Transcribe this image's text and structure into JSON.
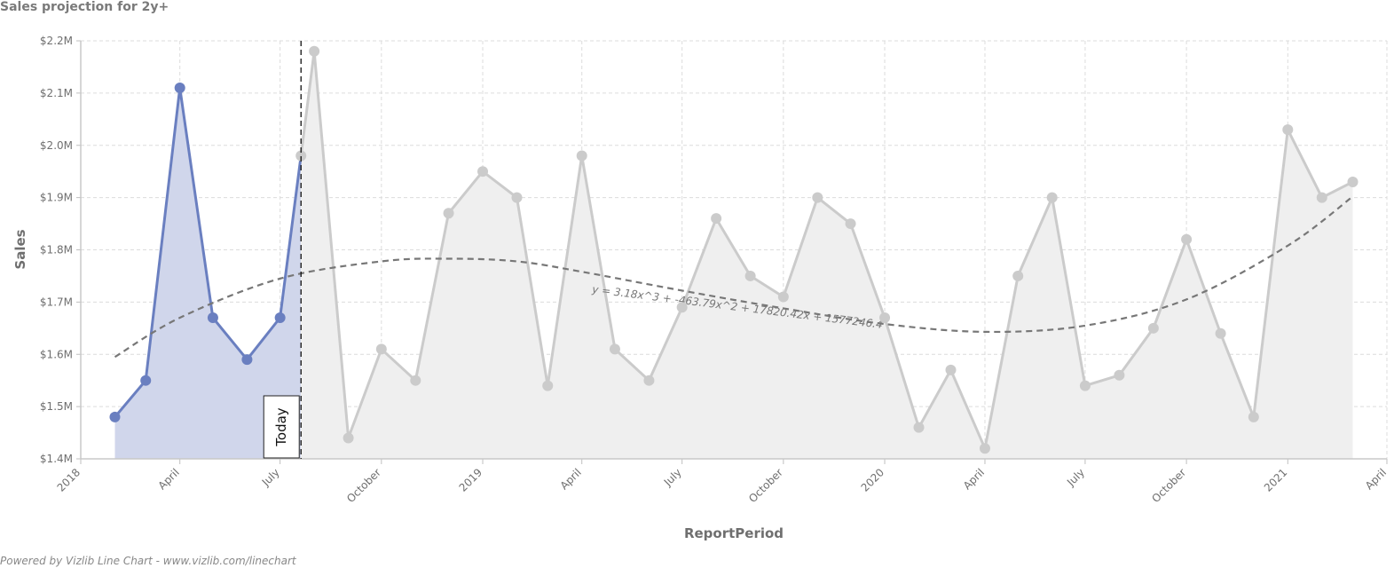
{
  "title": "Sales projection for 2y+",
  "footer": "Powered by Vizlib Line Chart - www.vizlib.com/linechart",
  "chart_data": {
    "type": "line",
    "xlabel": "ReportPeriod",
    "ylabel": "Sales",
    "ylim": [
      1400000,
      2200000
    ],
    "xlim": [
      "2018-01-01",
      "2021-04-01"
    ],
    "y_ticks": [
      {
        "value": 1400000,
        "label": "$1.4M"
      },
      {
        "value": 1500000,
        "label": "$1.5M"
      },
      {
        "value": 1600000,
        "label": "$1.6M"
      },
      {
        "value": 1700000,
        "label": "$1.7M"
      },
      {
        "value": 1800000,
        "label": "$1.8M"
      },
      {
        "value": 1900000,
        "label": "$1.9M"
      },
      {
        "value": 2000000,
        "label": "$2.0M"
      },
      {
        "value": 2100000,
        "label": "$2.1M"
      },
      {
        "value": 2200000,
        "label": "$2.2M"
      }
    ],
    "x_ticks": [
      {
        "date": "2018-01-01",
        "label": "2018"
      },
      {
        "date": "2018-04-01",
        "label": "April"
      },
      {
        "date": "2018-07-01",
        "label": "July"
      },
      {
        "date": "2018-10-01",
        "label": "October"
      },
      {
        "date": "2019-01-01",
        "label": "2019"
      },
      {
        "date": "2019-04-01",
        "label": "April"
      },
      {
        "date": "2019-07-01",
        "label": "July"
      },
      {
        "date": "2019-10-01",
        "label": "October"
      },
      {
        "date": "2020-01-01",
        "label": "2020"
      },
      {
        "date": "2020-04-01",
        "label": "April"
      },
      {
        "date": "2020-07-01",
        "label": "July"
      },
      {
        "date": "2020-10-01",
        "label": "October"
      },
      {
        "date": "2021-01-01",
        "label": "2021"
      },
      {
        "date": "2021-04-01",
        "label": "April"
      }
    ],
    "series": [
      {
        "color": "#6a7fc0",
        "fill": "#d0d6eb",
        "points": [
          {
            "date": "2018-02-01",
            "value": 1480000
          },
          {
            "date": "2018-03-01",
            "value": 1550000
          },
          {
            "date": "2018-04-01",
            "value": 2110000
          },
          {
            "date": "2018-05-01",
            "value": 1670000
          },
          {
            "date": "2018-06-01",
            "value": 1590000
          },
          {
            "date": "2018-07-01",
            "value": 1670000
          },
          {
            "date": "2018-07-20",
            "value": 1980000
          }
        ]
      },
      {
        "color": "#cbcbcb",
        "fill": "#efefef",
        "points": [
          {
            "date": "2018-07-20",
            "value": 1980000
          },
          {
            "date": "2018-08-01",
            "value": 2180000
          },
          {
            "date": "2018-09-01",
            "value": 1440000
          },
          {
            "date": "2018-10-01",
            "value": 1610000
          },
          {
            "date": "2018-11-01",
            "value": 1550000
          },
          {
            "date": "2018-12-01",
            "value": 1870000
          },
          {
            "date": "2019-01-01",
            "value": 1950000
          },
          {
            "date": "2019-02-01",
            "value": 1900000
          },
          {
            "date": "2019-03-01",
            "value": 1540000
          },
          {
            "date": "2019-04-01",
            "value": 1980000
          },
          {
            "date": "2019-05-01",
            "value": 1610000
          },
          {
            "date": "2019-06-01",
            "value": 1550000
          },
          {
            "date": "2019-07-01",
            "value": 1690000
          },
          {
            "date": "2019-08-01",
            "value": 1860000
          },
          {
            "date": "2019-09-01",
            "value": 1750000
          },
          {
            "date": "2019-10-01",
            "value": 1710000
          },
          {
            "date": "2019-11-01",
            "value": 1900000
          },
          {
            "date": "2019-12-01",
            "value": 1850000
          },
          {
            "date": "2020-01-01",
            "value": 1670000
          },
          {
            "date": "2020-02-01",
            "value": 1460000
          },
          {
            "date": "2020-03-01",
            "value": 1570000
          },
          {
            "date": "2020-04-01",
            "value": 1420000
          },
          {
            "date": "2020-05-01",
            "value": 1750000
          },
          {
            "date": "2020-06-01",
            "value": 1900000
          },
          {
            "date": "2020-07-01",
            "value": 1540000
          },
          {
            "date": "2020-08-01",
            "value": 1560000
          },
          {
            "date": "2020-09-01",
            "value": 1650000
          },
          {
            "date": "2020-10-01",
            "value": 1820000
          },
          {
            "date": "2020-11-01",
            "value": 1640000
          },
          {
            "date": "2020-12-01",
            "value": 1480000
          },
          {
            "date": "2021-01-01",
            "value": 2030000
          },
          {
            "date": "2021-02-01",
            "value": 1900000
          },
          {
            "date": "2021-03-01",
            "value": 1930000
          }
        ]
      }
    ],
    "trendline": {
      "label": "y = 3.18x^3 + -463.79x^2 + 17820.42x + 1577246.4",
      "color": "#777777",
      "style": "dashed",
      "points": [
        {
          "date": "2018-02-01",
          "value": 1595000
        },
        {
          "date": "2018-04-01",
          "value": 1670000
        },
        {
          "date": "2018-07-01",
          "value": 1745000
        },
        {
          "date": "2018-10-01",
          "value": 1778000
        },
        {
          "date": "2018-12-01",
          "value": 1783000
        },
        {
          "date": "2019-02-01",
          "value": 1778000
        },
        {
          "date": "2019-04-01",
          "value": 1758000
        },
        {
          "date": "2019-07-01",
          "value": 1722000
        },
        {
          "date": "2019-10-01",
          "value": 1688000
        },
        {
          "date": "2020-01-01",
          "value": 1658000
        },
        {
          "date": "2020-04-01",
          "value": 1643000
        },
        {
          "date": "2020-07-01",
          "value": 1655000
        },
        {
          "date": "2020-10-01",
          "value": 1705000
        },
        {
          "date": "2021-01-01",
          "value": 1808000
        },
        {
          "date": "2021-03-01",
          "value": 1902000
        }
      ]
    },
    "marker": {
      "label": "Today",
      "date": "2018-07-20"
    },
    "grid": true,
    "legend": "none"
  }
}
